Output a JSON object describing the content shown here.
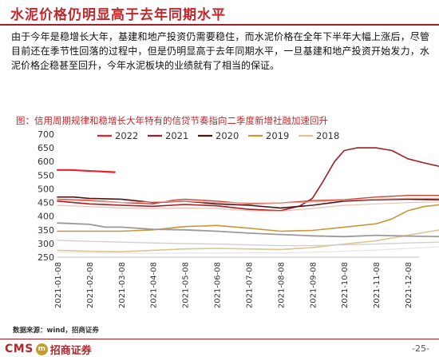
{
  "header": {
    "title": "水泥价格仍明显高于去年同期水平"
  },
  "body": {
    "paragraph": "由于今年是稳增长大年，基建和地产投资仍需要稳住，而水泥价格在全年下半年大幅上涨后，尽管目前还在季节性回落的过程中，但是仍明显高于去年同期水平，一旦基建和地产投资开始发力，水泥价格企稳甚至回升，今年水泥板块的业绩就有了相当的保证。"
  },
  "figure": {
    "caption": "图：信用周期规律和稳增长大年特有的信贷节奏指向二季度新增社融加速回升",
    "source": "数据来源：wind，招商证券"
  },
  "footer": {
    "logo_text": "CMS",
    "logo_badge": "m",
    "logo_cn": "招商证券",
    "page_number": "-25-"
  },
  "chart_data": {
    "type": "line",
    "x_ticks": [
      "2021-01-08",
      "2021-02-08",
      "2021-03-08",
      "2021-04-08",
      "2021-05-08",
      "2021-06-08",
      "2021-07-08",
      "2021-08-08",
      "2021-09-08",
      "2021-10-08",
      "2021-11-08",
      "2021-12-08"
    ],
    "ylim": [
      250,
      700
    ],
    "y_ticks": [
      250,
      300,
      350,
      400,
      450,
      500,
      550,
      600,
      650,
      700
    ],
    "legend_position": "top",
    "grid": false,
    "series": [
      {
        "name": "2022",
        "color": "#e8242a",
        "width": 2.2,
        "legend": true,
        "x": [
          0,
          0.4,
          1.8
        ],
        "y": [
          569,
          569,
          561
        ]
      },
      {
        "name": "2021",
        "color": "#a51d22",
        "width": 1.6,
        "legend": true,
        "x": [
          0,
          1,
          2,
          3,
          4,
          5,
          6,
          7,
          7.6,
          8,
          8.3,
          8.7,
          9,
          9.4,
          10,
          10.5,
          11,
          11.5,
          12
        ],
        "y": [
          455,
          445,
          440,
          436,
          443,
          438,
          425,
          420,
          437,
          465,
          520,
          600,
          640,
          650,
          650,
          640,
          610,
          595,
          582
        ]
      },
      {
        "name": "2020",
        "color": "#551013",
        "width": 1.6,
        "legend": true,
        "x": [
          0,
          0.5,
          1,
          2,
          3,
          4,
          5,
          6,
          7,
          8,
          9,
          10,
          11,
          12
        ],
        "y": [
          470,
          470,
          465,
          462,
          450,
          455,
          445,
          440,
          430,
          440,
          455,
          460,
          462,
          460
        ]
      },
      {
        "name": "2019",
        "color": "#c8973a",
        "width": 1.6,
        "legend": true,
        "x": [
          0,
          1,
          2,
          3,
          4,
          5,
          6,
          7,
          8,
          9,
          10,
          10.5,
          11,
          11.5,
          12
        ],
        "y": [
          345,
          345,
          345,
          350,
          362,
          366,
          356,
          345,
          348,
          360,
          372,
          390,
          420,
          435,
          442
        ]
      },
      {
        "name": "2018",
        "color": "#e0c390",
        "width": 1.6,
        "legend": true,
        "x": [
          0,
          1,
          2,
          3,
          4,
          5,
          6,
          7,
          8,
          9,
          10,
          11,
          12
        ],
        "y": [
          275,
          272,
          270,
          275,
          280,
          282,
          280,
          278,
          285,
          298,
          310,
          330,
          350
        ]
      },
      {
        "name": "",
        "color": "#c9453a",
        "width": 1.4,
        "legend": false,
        "x": [
          0,
          1,
          2,
          3,
          3.6,
          4,
          5,
          6,
          7,
          8,
          9,
          10,
          11,
          12
        ],
        "y": [
          462,
          458,
          450,
          445,
          458,
          462,
          455,
          445,
          448,
          457,
          460,
          470,
          476,
          476
        ]
      },
      {
        "name": "",
        "color": "#eaa090",
        "width": 1.2,
        "legend": false,
        "x": [
          0,
          1,
          2,
          3,
          4,
          5,
          6,
          7,
          8,
          9,
          10,
          11,
          12
        ],
        "y": [
          460,
          455,
          450,
          452,
          455,
          450,
          448,
          448,
          452,
          458,
          462,
          465,
          465
        ]
      },
      {
        "name": "",
        "color": "#e8c0b0",
        "width": 1.2,
        "legend": false,
        "x": [
          0,
          1,
          2,
          3,
          4,
          5,
          6,
          7,
          8,
          9,
          10,
          11,
          12
        ],
        "y": [
          440,
          435,
          430,
          428,
          430,
          428,
          420,
          418,
          428,
          440,
          445,
          450,
          452
        ]
      },
      {
        "name": "",
        "color": "#9a9a9a",
        "width": 1.8,
        "legend": false,
        "x": [
          0,
          1,
          1.5,
          2,
          3,
          4,
          5,
          6,
          7,
          8,
          9,
          10,
          11,
          12
        ],
        "y": [
          375,
          370,
          360,
          360,
          352,
          350,
          345,
          338,
          333,
          328,
          325,
          330,
          327,
          325
        ]
      },
      {
        "name": "",
        "color": "#d0d0d0",
        "width": 1.4,
        "legend": false,
        "x": [
          0,
          1,
          2,
          3,
          4,
          5,
          6,
          7,
          8,
          9,
          10,
          11,
          12
        ],
        "y": [
          312,
          308,
          305,
          302,
          300,
          298,
          295,
          292,
          292,
          295,
          298,
          302,
          305
        ]
      },
      {
        "name": "",
        "color": "#e5e5e5",
        "width": 1.2,
        "legend": false,
        "x": [
          0,
          1,
          2,
          3,
          4,
          5,
          6,
          7,
          8,
          9,
          10,
          11,
          12
        ],
        "y": [
          268,
          266,
          265,
          264,
          265,
          265,
          266,
          265,
          268,
          272,
          276,
          282,
          288
        ]
      }
    ]
  }
}
